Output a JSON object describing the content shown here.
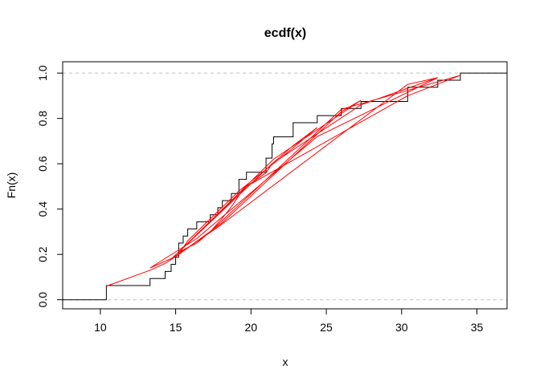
{
  "chart_data": {
    "type": "line",
    "title": "ecdf(x)",
    "xlabel": "x",
    "ylabel": "Fn(x)",
    "xlim": [
      7.5,
      37
    ],
    "ylim": [
      -0.04,
      1.05
    ],
    "x_ticks": [
      10,
      15,
      20,
      25,
      30,
      35
    ],
    "y_ticks": [
      0.0,
      0.2,
      0.4,
      0.6,
      0.8,
      1.0
    ],
    "y_tick_labels": [
      "0.0",
      "0.2",
      "0.4",
      "0.6",
      "0.8",
      "1.0"
    ],
    "reference_lines": [
      0,
      1
    ],
    "colors": {
      "ecdf": "#000000",
      "overlay": "#ff0000",
      "reference": "#bebebe"
    },
    "series": [
      {
        "name": "ecdf",
        "step_x": [
          10.4,
          13.3,
          14.3,
          14.7,
          15.0,
          15.2,
          15.2,
          15.5,
          15.8,
          16.4,
          17.3,
          17.8,
          18.1,
          18.7,
          19.2,
          19.2,
          19.7,
          21.0,
          21.4,
          21.4,
          21.5,
          22.8,
          22.8,
          24.4,
          26.0,
          27.3,
          30.4,
          30.4,
          32.4,
          33.9
        ],
        "step_y": [
          0.0625,
          0.09375,
          0.125,
          0.15625,
          0.1875,
          0.21875,
          0.25,
          0.28125,
          0.3125,
          0.34375,
          0.375,
          0.40625,
          0.4375,
          0.46875,
          0.5,
          0.53125,
          0.5625,
          0.625,
          0.65625,
          0.6875,
          0.71875,
          0.75,
          0.78125,
          0.8125,
          0.84375,
          0.875,
          0.90625,
          0.9375,
          0.96875,
          1.0
        ],
        "start_x": 7.5,
        "end_x": 37
      },
      {
        "name": "red-overlay",
        "x": [
          10.4,
          13.3,
          14.3,
          15.0,
          15.5,
          16.4,
          17.3,
          18.1,
          18.7,
          19.2,
          19.7,
          21.0,
          21.4,
          22.8,
          24.4,
          22.8,
          19.2,
          15.8,
          15.2,
          18.1,
          26.0,
          27.3,
          21.5,
          15.5,
          14.7,
          17.8,
          30.4,
          32.4,
          24.4,
          16.4,
          13.3,
          15.0,
          17.3,
          26.0,
          33.9,
          30.4,
          19.7,
          15.2,
          21.4,
          27.3,
          32.4
        ],
        "y": [
          0.06,
          0.13,
          0.16,
          0.19,
          0.22,
          0.25,
          0.3,
          0.36,
          0.41,
          0.46,
          0.5,
          0.56,
          0.6,
          0.68,
          0.76,
          0.67,
          0.48,
          0.26,
          0.2,
          0.34,
          0.83,
          0.88,
          0.62,
          0.23,
          0.18,
          0.32,
          0.95,
          0.98,
          0.72,
          0.27,
          0.14,
          0.19,
          0.3,
          0.84,
          0.99,
          0.9,
          0.5,
          0.21,
          0.6,
          0.86,
          0.98
        ]
      }
    ]
  }
}
